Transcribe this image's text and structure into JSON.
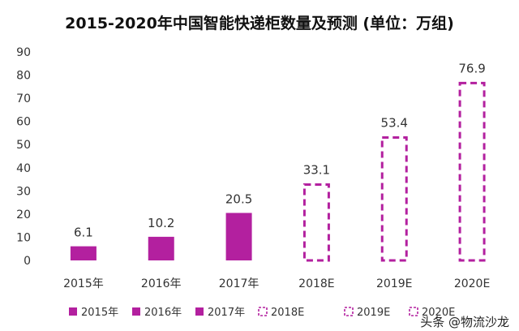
{
  "chart_data": {
    "type": "bar",
    "title": "2015-2020年中国智能快递柜数量及预测 (单位：万组)",
    "categories": [
      "2015年",
      "2016年",
      "2017年",
      "2018E",
      "2019E",
      "2020E"
    ],
    "values": [
      6.1,
      10.2,
      20.5,
      33.1,
      53.4,
      76.9
    ],
    "forecast": [
      false,
      false,
      false,
      true,
      true,
      true
    ],
    "value_labels": [
      "6.1",
      "10.2",
      "20.5",
      "33.1",
      "53.4",
      "76.9"
    ],
    "yticks": [
      "0",
      "10",
      "20",
      "30",
      "40",
      "50",
      "60",
      "70",
      "80",
      "90"
    ],
    "ylim": [
      0,
      90
    ],
    "grid": false,
    "legend": {
      "placement": "bottom",
      "items": [
        "2015年",
        "2016年",
        "2017年",
        "2018E",
        "2019E",
        "2020E"
      ]
    },
    "colors": {
      "bar": "#b3209f"
    }
  },
  "watermark": {
    "text": "头条 @物流沙龙"
  }
}
